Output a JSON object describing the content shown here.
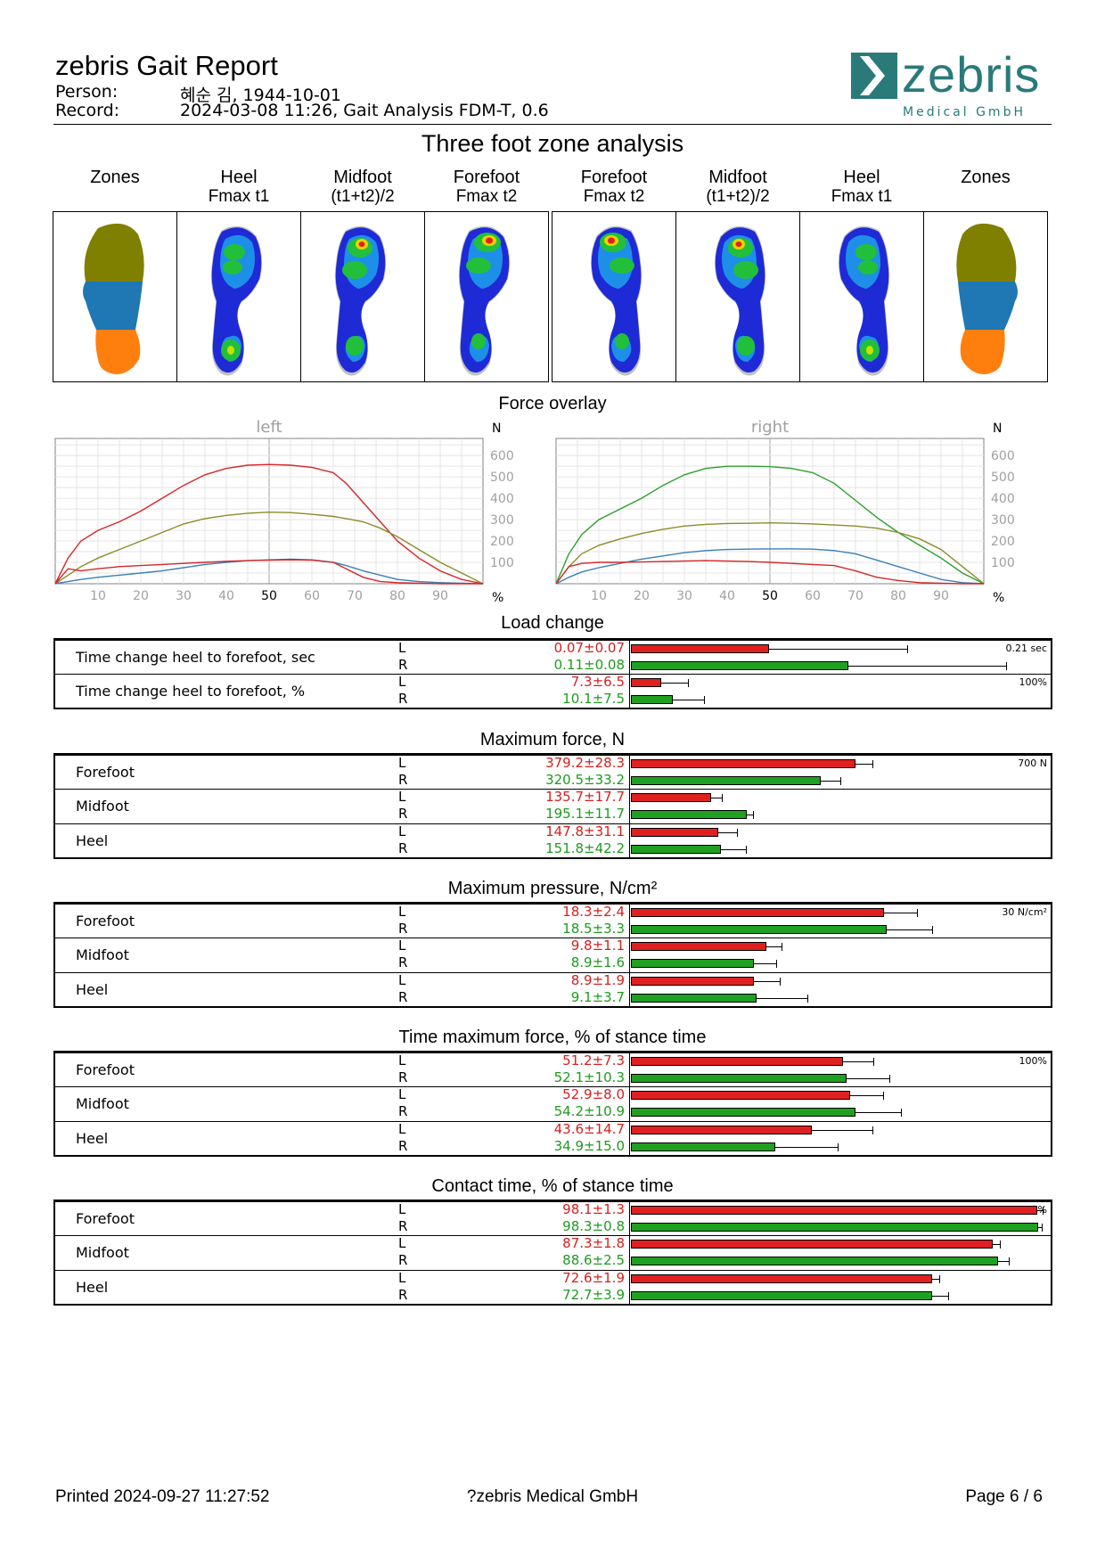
{
  "header": {
    "title": "zebris Gait Report",
    "person_label": "Person:",
    "person_value": "혜순 김, 1944-10-01",
    "record_label": "Record:",
    "record_value": "2024-03-08 11:26, Gait Analysis FDM-T, 0.6",
    "logo_text": "zebris",
    "logo_sub": "Medical GmbH"
  },
  "zones": {
    "title": "Three foot zone analysis",
    "columns": [
      {
        "line1": "Zones",
        "line2": ""
      },
      {
        "line1": "Heel",
        "line2": "Fmax t1"
      },
      {
        "line1": "Midfoot",
        "line2": "(t1+t2)/2"
      },
      {
        "line1": "Forefoot",
        "line2": "Fmax t2"
      },
      {
        "line1": "Forefoot",
        "line2": "Fmax t2"
      },
      {
        "line1": "Midfoot",
        "line2": "(t1+t2)/2"
      },
      {
        "line1": "Heel",
        "line2": "Fmax t1"
      },
      {
        "line1": "Zones",
        "line2": ""
      }
    ],
    "colors": {
      "forefoot": "#7f7f00",
      "midfoot": "#1f77b4",
      "heel": "#ff7f0e"
    }
  },
  "force_overlay": {
    "title": "Force overlay",
    "unit_y": "N",
    "unit_x": "%",
    "colors": {
      "forefoot": "#d62728",
      "midfoot": "#8c8c2a",
      "heel": "#3a7fb8",
      "total_right": "#2ca02c"
    }
  },
  "chart_data": [
    {
      "type": "line",
      "title": "left",
      "xlabel": "%",
      "ylabel": "N",
      "xlim": [
        0,
        100
      ],
      "ylim": [
        0,
        680
      ],
      "xticks": [
        10,
        20,
        30,
        40,
        50,
        60,
        70,
        80,
        90
      ],
      "yticks": [
        100,
        200,
        300,
        400,
        500,
        600
      ],
      "grid": true,
      "x": [
        0,
        3,
        6,
        10,
        15,
        20,
        25,
        30,
        35,
        40,
        45,
        50,
        55,
        60,
        65,
        68,
        72,
        76,
        80,
        85,
        90,
        95,
        100
      ],
      "series": [
        {
          "color": "#d62728",
          "values": [
            0,
            120,
            200,
            250,
            290,
            340,
            400,
            460,
            510,
            540,
            555,
            558,
            555,
            545,
            520,
            470,
            380,
            290,
            200,
            120,
            60,
            20,
            0
          ]
        },
        {
          "color": "#8c8c2a",
          "values": [
            0,
            40,
            80,
            120,
            160,
            200,
            240,
            280,
            305,
            320,
            330,
            335,
            333,
            325,
            315,
            305,
            290,
            260,
            220,
            160,
            100,
            50,
            0
          ]
        },
        {
          "color": "#3a7fb8",
          "values": [
            0,
            10,
            20,
            30,
            40,
            50,
            60,
            75,
            90,
            100,
            108,
            112,
            115,
            112,
            100,
            85,
            60,
            40,
            20,
            10,
            5,
            2,
            0
          ]
        },
        {
          "color": "#d62728",
          "values": [
            0,
            70,
            60,
            70,
            80,
            85,
            90,
            95,
            100,
            105,
            108,
            110,
            112,
            110,
            100,
            70,
            30,
            10,
            5,
            2,
            0,
            0,
            0
          ]
        }
      ]
    },
    {
      "type": "line",
      "title": "right",
      "xlabel": "%",
      "ylabel": "N",
      "xlim": [
        0,
        100
      ],
      "ylim": [
        0,
        680
      ],
      "xticks": [
        10,
        20,
        30,
        40,
        50,
        60,
        70,
        80,
        90
      ],
      "yticks": [
        100,
        200,
        300,
        400,
        500,
        600
      ],
      "grid": true,
      "x": [
        0,
        3,
        6,
        10,
        15,
        20,
        25,
        30,
        35,
        40,
        45,
        50,
        55,
        60,
        65,
        70,
        75,
        80,
        85,
        90,
        95,
        100
      ],
      "series": [
        {
          "color": "#2ca02c",
          "values": [
            0,
            140,
            230,
            300,
            350,
            400,
            460,
            510,
            540,
            550,
            550,
            548,
            540,
            520,
            470,
            390,
            310,
            240,
            180,
            120,
            50,
            0
          ]
        },
        {
          "color": "#8c8c2a",
          "values": [
            0,
            80,
            140,
            180,
            210,
            235,
            255,
            270,
            278,
            282,
            283,
            285,
            283,
            280,
            275,
            270,
            260,
            240,
            210,
            160,
            80,
            0
          ]
        },
        {
          "color": "#3a7fb8",
          "values": [
            0,
            30,
            55,
            75,
            95,
            115,
            130,
            145,
            155,
            160,
            162,
            163,
            163,
            162,
            155,
            140,
            110,
            80,
            50,
            20,
            5,
            0
          ]
        },
        {
          "color": "#d62728",
          "values": [
            0,
            80,
            95,
            100,
            100,
            102,
            104,
            106,
            108,
            106,
            104,
            100,
            95,
            90,
            85,
            60,
            30,
            15,
            5,
            2,
            0,
            0
          ]
        }
      ]
    }
  ],
  "load_change": {
    "title": "Load change",
    "scale_max": 0.21,
    "rows": [
      {
        "name": "Time change heel to forefoot, sec",
        "scale_label": "0.21 sec",
        "scale_max": 0.21,
        "L": {
          "text": "0.07±0.07",
          "mean": 0.07,
          "sd": 0.07
        },
        "R": {
          "text": "0.11±0.08",
          "mean": 0.11,
          "sd": 0.08
        }
      },
      {
        "name": "Time change heel to forefoot, %",
        "scale_label": "100%",
        "scale_max": 100,
        "L": {
          "text": "7.3±6.5",
          "mean": 7.3,
          "sd": 6.5
        },
        "R": {
          "text": "10.1±7.5",
          "mean": 10.1,
          "sd": 7.5
        }
      }
    ]
  },
  "max_force": {
    "title": "Maximum force, N",
    "scale_label": "700 N",
    "scale_max": 700,
    "rows": [
      {
        "name": "Forefoot",
        "L": {
          "text": "379.2±28.3",
          "mean": 379.2,
          "sd": 28.3
        },
        "R": {
          "text": "320.5±33.2",
          "mean": 320.5,
          "sd": 33.2
        }
      },
      {
        "name": "Midfoot",
        "L": {
          "text": "135.7±17.7",
          "mean": 135.7,
          "sd": 17.7
        },
        "R": {
          "text": "195.1±11.7",
          "mean": 195.1,
          "sd": 11.7
        }
      },
      {
        "name": "Heel",
        "L": {
          "text": "147.8±31.1",
          "mean": 147.8,
          "sd": 31.1
        },
        "R": {
          "text": "151.8±42.2",
          "mean": 151.8,
          "sd": 42.2
        }
      }
    ]
  },
  "max_pressure": {
    "title": "Maximum pressure, N/cm²",
    "scale_label": "30 N/cm²",
    "scale_max": 30,
    "rows": [
      {
        "name": "Forefoot",
        "L": {
          "text": "18.3±2.4",
          "mean": 18.3,
          "sd": 2.4
        },
        "R": {
          "text": "18.5±3.3",
          "mean": 18.5,
          "sd": 3.3
        }
      },
      {
        "name": "Midfoot",
        "L": {
          "text": "9.8±1.1",
          "mean": 9.8,
          "sd": 1.1
        },
        "R": {
          "text": "8.9±1.6",
          "mean": 8.9,
          "sd": 1.6
        }
      },
      {
        "name": "Heel",
        "L": {
          "text": "8.9±1.9",
          "mean": 8.9,
          "sd": 1.9
        },
        "R": {
          "text": "9.1±3.7",
          "mean": 9.1,
          "sd": 3.7
        }
      }
    ]
  },
  "time_max_force": {
    "title": "Time maximum force,  % of stance time",
    "scale_label": "100%",
    "scale_max": 100,
    "rows": [
      {
        "name": "Forefoot",
        "L": {
          "text": "51.2±7.3",
          "mean": 51.2,
          "sd": 7.3
        },
        "R": {
          "text": "52.1±10.3",
          "mean": 52.1,
          "sd": 10.3
        }
      },
      {
        "name": "Midfoot",
        "L": {
          "text": "52.9±8.0",
          "mean": 52.9,
          "sd": 8.0
        },
        "R": {
          "text": "54.2±10.9",
          "mean": 54.2,
          "sd": 10.9
        }
      },
      {
        "name": "Heel",
        "L": {
          "text": "43.6±14.7",
          "mean": 43.6,
          "sd": 14.7
        },
        "R": {
          "text": "34.9±15.0",
          "mean": 34.9,
          "sd": 15.0
        }
      }
    ]
  },
  "contact_time": {
    "title": "Contact time,  % of stance time",
    "scale_label": "100%",
    "scale_max": 100,
    "rows": [
      {
        "name": "Forefoot",
        "L": {
          "text": "98.1±1.3",
          "mean": 98.1,
          "sd": 1.3
        },
        "R": {
          "text": "98.3±0.8",
          "mean": 98.3,
          "sd": 0.8
        }
      },
      {
        "name": "Midfoot",
        "L": {
          "text": "87.3±1.8",
          "mean": 87.3,
          "sd": 1.8
        },
        "R": {
          "text": "88.6±2.5",
          "mean": 88.6,
          "sd": 2.5
        }
      },
      {
        "name": "Heel",
        "L": {
          "text": "72.6±1.9",
          "mean": 72.6,
          "sd": 1.9
        },
        "R": {
          "text": "72.7±3.9",
          "mean": 72.7,
          "sd": 3.9
        }
      }
    ]
  },
  "footer": {
    "printed": "Printed  2024-09-27 11:27:52",
    "company": "?zebris Medical GmbH",
    "page": "Page  6 / 6"
  }
}
